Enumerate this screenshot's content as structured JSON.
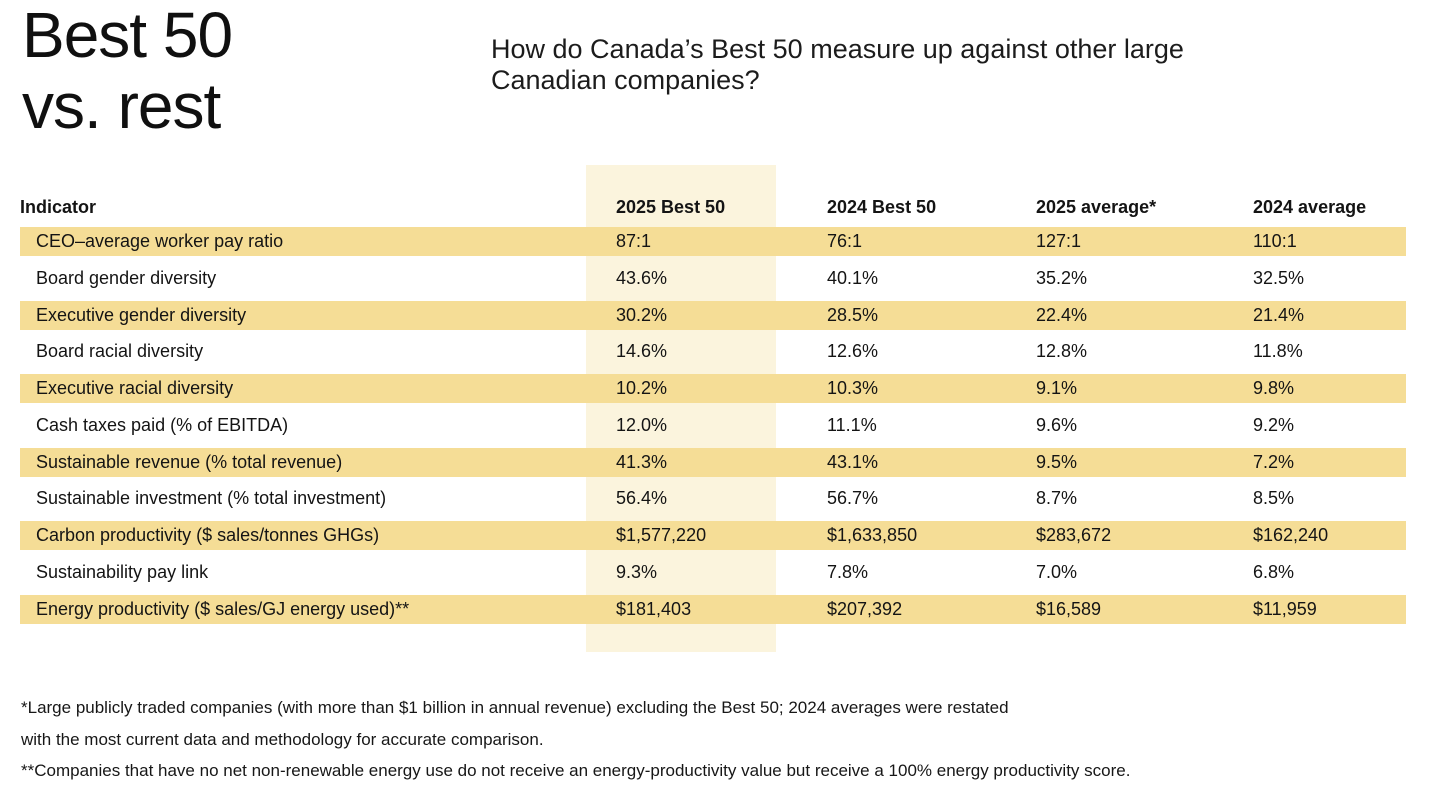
{
  "header": {
    "title": "Best 50\nvs. rest",
    "subtitle": "How do Canada’s Best 50 measure up against other large\nCanadian companies?"
  },
  "chart_data": {
    "type": "table",
    "title": "Best 50 vs. rest",
    "subtitle": "How do Canada’s Best 50 measure up against other large Canadian companies?",
    "columns": [
      "Indicator",
      "2025 Best 50",
      "2024 Best 50",
      "2025 average*",
      "2024 average"
    ],
    "highlighted_column": "2025 Best 50",
    "rows": [
      {
        "indicator": "CEO–average worker pay ratio",
        "values": [
          "87:1",
          "76:1",
          "127:1",
          "110:1"
        ],
        "highlighted": true
      },
      {
        "indicator": "Board gender diversity",
        "values": [
          "43.6%",
          "40.1%",
          "35.2%",
          "32.5%"
        ],
        "highlighted": false
      },
      {
        "indicator": "Executive gender diversity",
        "values": [
          "30.2%",
          "28.5%",
          "22.4%",
          "21.4%"
        ],
        "highlighted": true
      },
      {
        "indicator": "Board racial diversity",
        "values": [
          "14.6%",
          "12.6%",
          "12.8%",
          "11.8%"
        ],
        "highlighted": false
      },
      {
        "indicator": "Executive racial diversity",
        "values": [
          "10.2%",
          "10.3%",
          "9.1%",
          "9.8%"
        ],
        "highlighted": true
      },
      {
        "indicator": "Cash taxes paid (% of EBITDA)",
        "values": [
          "12.0%",
          "11.1%",
          "9.6%",
          "9.2%"
        ],
        "highlighted": false
      },
      {
        "indicator": "Sustainable revenue (% total revenue)",
        "values": [
          "41.3%",
          "43.1%",
          "9.5%",
          "7.2%"
        ],
        "highlighted": true
      },
      {
        "indicator": "Sustainable investment (% total investment)",
        "values": [
          "56.4%",
          "56.7%",
          "8.7%",
          "8.5%"
        ],
        "highlighted": false
      },
      {
        "indicator": "Carbon productivity ($ sales/tonnes GHGs)",
        "values": [
          "$1,577,220",
          "$1,633,850",
          "$283,672",
          "$162,240"
        ],
        "highlighted": true
      },
      {
        "indicator": "Sustainability pay link",
        "values": [
          "9.3%",
          "7.8%",
          "7.0%",
          "6.8%"
        ],
        "highlighted": false
      },
      {
        "indicator": "Energy productivity ($ sales/GJ energy used)**",
        "values": [
          "$181,403",
          "$207,392",
          "$16,589",
          "$11,959"
        ],
        "highlighted": true
      }
    ],
    "footnote_lines": [
      "*Large publicly traded companies (with more than $1 billion in annual revenue) excluding the Best 50; 2024 averages were restated",
      "with the most current data and methodology for accurate comparison.",
      "**Companies that have no net non-renewable energy use do not receive an energy-productivity value but receive a 100% energy productivity score."
    ],
    "layout_hints": {
      "row_striping": "alternating highlighted rows starting with first data row",
      "column_band": "cream band behind 2025 Best 50 column extending above header and below last row"
    }
  },
  "colors": {
    "row_highlight": "#F5DD96",
    "column_highlight": "#FBF4DD",
    "text": "#141414",
    "background": "#FFFFFF"
  }
}
